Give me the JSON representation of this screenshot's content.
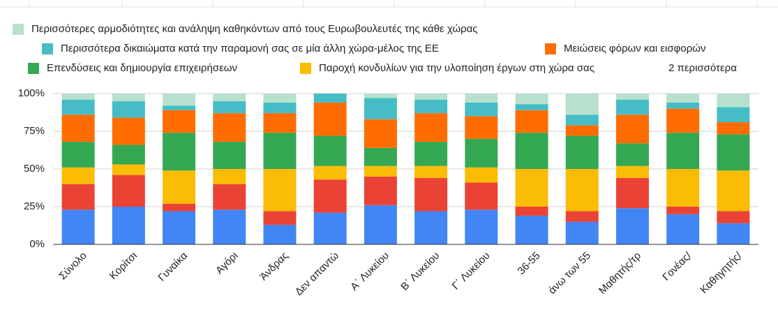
{
  "chart_data": {
    "type": "bar",
    "stacked": true,
    "categories": [
      "Σύνολο",
      "Κορίτσι",
      "Γυναίκα",
      "Αγόρι",
      "Άνδρας",
      "Δεν απαντώ",
      "Α΄ Λυκείου",
      "Β΄ Λυκείου",
      "Γ΄ Λυκείου",
      "36-55",
      "άνω των 55",
      "Μαθητής/τρ",
      "Γονέας/",
      "Καθηγητής/"
    ],
    "series": [
      {
        "name": "Περισσότερες αρμοδιότητες και ανάληψη καθηκόντων από τους Ευρωβουλευτές της κάθε χώρας",
        "color": "#b7e1cd",
        "values": [
          4,
          5,
          8,
          5,
          6,
          0,
          3,
          4,
          6,
          7,
          14,
          4,
          6,
          9
        ]
      },
      {
        "name": "Περισσότερα δικαιώματα κατά την παραμονή σας σε μία άλλη χώρα-μέλος της ΕΕ",
        "color": "#46bdc6",
        "values": [
          10,
          11,
          3,
          8,
          7,
          6,
          14,
          9,
          9,
          4,
          7,
          10,
          4,
          10
        ]
      },
      {
        "name": "Μειώσεις φόρων και εισφορών",
        "color": "#ff6d01",
        "values": [
          18,
          18,
          15,
          19,
          13,
          22,
          19,
          19,
          15,
          15,
          7,
          19,
          16,
          8
        ]
      },
      {
        "name": "Επενδύσεις και δημιουργία επιχειρήσεων",
        "color": "#34a853",
        "values": [
          17,
          13,
          25,
          18,
          24,
          20,
          12,
          16,
          19,
          24,
          22,
          15,
          24,
          24
        ]
      },
      {
        "name": "Παροχή κονδυλίων για την υλοποίηση έργων στη χώρα σας",
        "color": "#fbbc04",
        "values": [
          11,
          7,
          22,
          10,
          28,
          9,
          7,
          8,
          10,
          25,
          28,
          8,
          25,
          27
        ]
      },
      {
        "color": "#ea4335",
        "values": [
          17,
          21,
          5,
          17,
          9,
          22,
          19,
          22,
          18,
          6,
          7,
          20,
          5,
          8
        ]
      },
      {
        "color": "#4285f4",
        "values": [
          23,
          25,
          22,
          23,
          13,
          21,
          26,
          22,
          23,
          19,
          15,
          24,
          20,
          14
        ]
      }
    ],
    "legend_more": "2 περισσότερα",
    "ylim": [
      0,
      100
    ],
    "yticks": [
      {
        "value": 0,
        "label": "0%"
      },
      {
        "value": 25,
        "label": "25%"
      },
      {
        "value": 50,
        "label": "50%"
      },
      {
        "value": 75,
        "label": "75%"
      },
      {
        "value": 100,
        "label": "100%"
      }
    ],
    "grid": true
  }
}
